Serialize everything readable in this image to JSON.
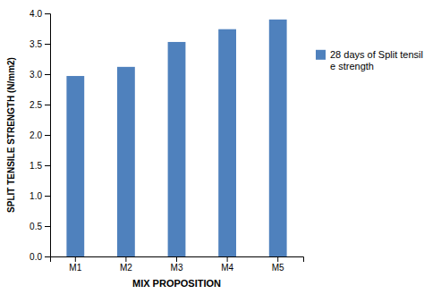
{
  "chart_data": {
    "type": "bar",
    "categories": [
      "M1",
      "M2",
      "M3",
      "M4",
      "M5"
    ],
    "series": [
      {
        "name": "28 days of Split tensil\ne strength",
        "color": "#4f81bd",
        "values": [
          2.97,
          3.12,
          3.53,
          3.74,
          3.9
        ]
      }
    ],
    "xlabel": "MIX PROPOSITION",
    "ylabel": "SPLIT TENSILE STRENGTH (N/mm2)",
    "ylim": [
      0,
      4
    ],
    "yticks": [
      {
        "value": 0,
        "label": "0.0"
      },
      0.5,
      {
        "value": 1,
        "label": "1.0"
      },
      1.5,
      {
        "value": 2,
        "label": "2.0"
      },
      2.5,
      {
        "value": 3,
        "label": "3.0"
      },
      3.5,
      {
        "value": 4,
        "label": "4.0"
      }
    ],
    "grid": false,
    "legend": "right"
  }
}
